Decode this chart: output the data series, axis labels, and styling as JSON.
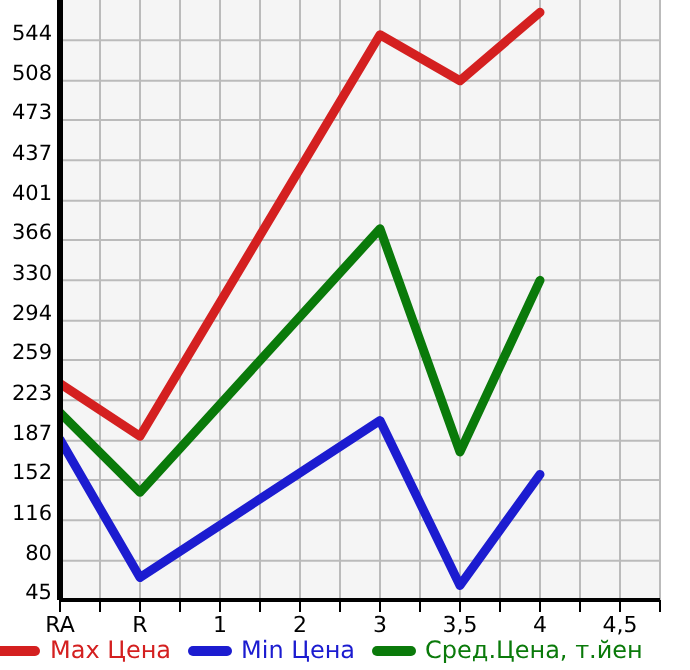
{
  "chart_data": {
    "type": "line",
    "categories": [
      "RA",
      "R",
      "1",
      "2",
      "3",
      "3,5",
      "4",
      "4,5"
    ],
    "series": [
      {
        "name": "Max Цена",
        "color": "#d42020",
        "values": [
          238,
          191,
          null,
          null,
          549,
          508,
          569,
          null
        ]
      },
      {
        "name": "Min Цена",
        "color": "#1c1cd0",
        "values": [
          188,
          65,
          null,
          null,
          205,
          58,
          157,
          null
        ]
      },
      {
        "name": "Сред.Цена, т.йен",
        "color": "#0a7a0a",
        "values": [
          212,
          141,
          null,
          null,
          376,
          177,
          330,
          null
        ]
      }
    ],
    "ylim": [
      45,
      580
    ],
    "yticks": [
      45,
      80,
      116,
      152,
      187,
      223,
      259,
      294,
      330,
      366,
      401,
      437,
      473,
      508,
      544
    ],
    "grid": true,
    "legend": "bottom",
    "marker": "none",
    "line_style": "solid"
  }
}
